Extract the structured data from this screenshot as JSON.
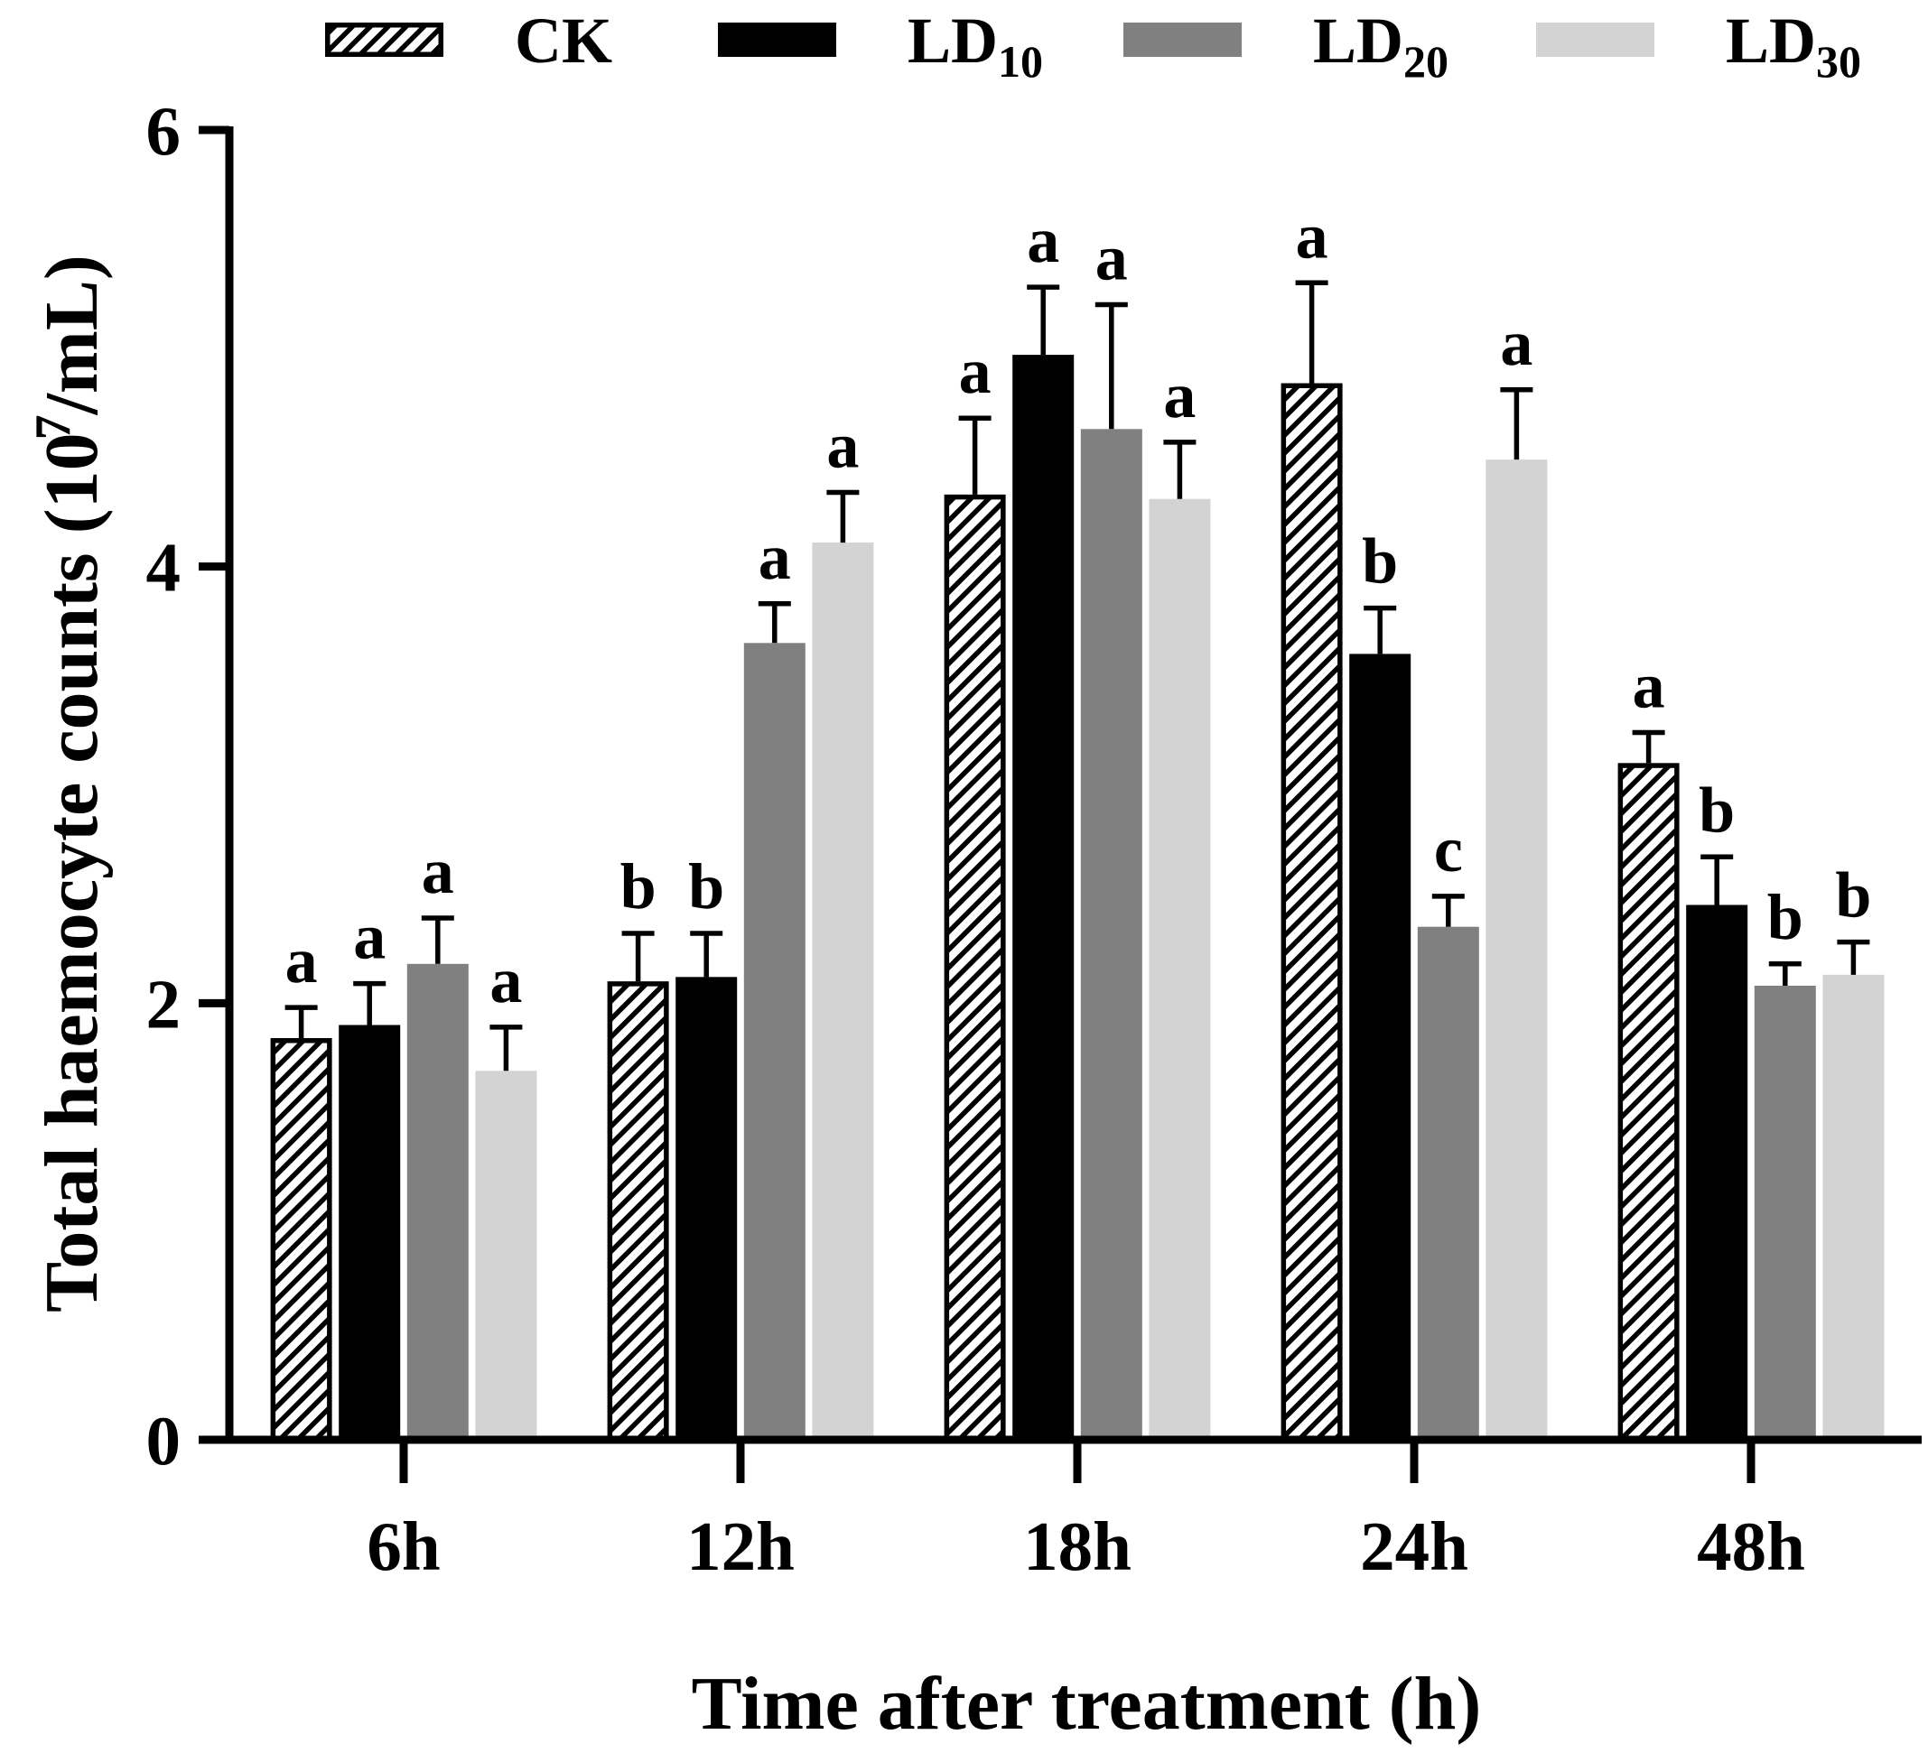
{
  "chart_data": {
    "type": "bar",
    "xlabel": "Time after treatment (h)",
    "ylabel": {
      "main": "Total haemocyte counts (10",
      "sup": "7",
      "end": "/mL)"
    },
    "categories": [
      "6h",
      "12h",
      "18h",
      "24h",
      "48h"
    ],
    "ylim": [
      0,
      6
    ],
    "yticks": [
      0,
      2,
      4,
      6
    ],
    "grid": false,
    "legend_position": "top",
    "series": [
      {
        "name": "CK",
        "name_sub": "",
        "hatched": true,
        "color": "#000000",
        "values": [
          1.84,
          2.1,
          4.33,
          4.84,
          3.1
        ],
        "errors": [
          0.14,
          0.22,
          0.35,
          0.46,
          0.14
        ],
        "letters": [
          "a",
          "b",
          "a",
          "a",
          "a"
        ]
      },
      {
        "name": "LD",
        "name_sub": "10",
        "hatched": false,
        "color": "#000000",
        "values": [
          1.9,
          2.12,
          4.97,
          3.6,
          2.45
        ],
        "errors": [
          0.19,
          0.2,
          0.31,
          0.21,
          0.22
        ],
        "letters": [
          "a",
          "b",
          "a",
          "b",
          "b"
        ]
      },
      {
        "name": "LD",
        "name_sub": "20",
        "hatched": false,
        "color": "#808080",
        "values": [
          2.18,
          3.65,
          4.63,
          2.35,
          2.08
        ],
        "errors": [
          0.21,
          0.18,
          0.57,
          0.14,
          0.1
        ],
        "letters": [
          "a",
          "a",
          "a",
          "c",
          "b"
        ]
      },
      {
        "name": "LD",
        "name_sub": "30",
        "hatched": false,
        "color": "#d3d3d3",
        "values": [
          1.69,
          4.11,
          4.31,
          4.49,
          2.13
        ],
        "errors": [
          0.2,
          0.23,
          0.26,
          0.32,
          0.15
        ],
        "letters": [
          "a",
          "a",
          "a",
          "a",
          "b"
        ]
      }
    ]
  }
}
